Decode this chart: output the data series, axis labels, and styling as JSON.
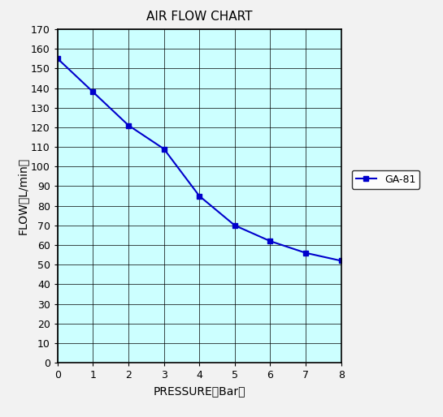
{
  "title": "AIR FLOW CHART",
  "xlabel": "PRESSURE（Bar）",
  "ylabel": "FLOW（L/min）",
  "x_data": [
    0,
    1,
    2,
    3,
    4,
    5,
    6,
    7,
    8
  ],
  "y_data": [
    155,
    138,
    121,
    109,
    85,
    70,
    62,
    56,
    52
  ],
  "xlim": [
    0,
    8
  ],
  "ylim": [
    0,
    170
  ],
  "x_ticks": [
    0,
    1,
    2,
    3,
    4,
    5,
    6,
    7,
    8
  ],
  "y_ticks": [
    0,
    10,
    20,
    30,
    40,
    50,
    60,
    70,
    80,
    90,
    100,
    110,
    120,
    130,
    140,
    150,
    160,
    170
  ],
  "line_color": "#0000CC",
  "marker": "s",
  "marker_size": 5,
  "legend_label": "GA-81",
  "bg_color": "#CCFFFF",
  "grid_color": "#000000",
  "title_fontsize": 11,
  "label_fontsize": 10,
  "tick_fontsize": 9,
  "fig_bg_color": "#F2F2F2"
}
